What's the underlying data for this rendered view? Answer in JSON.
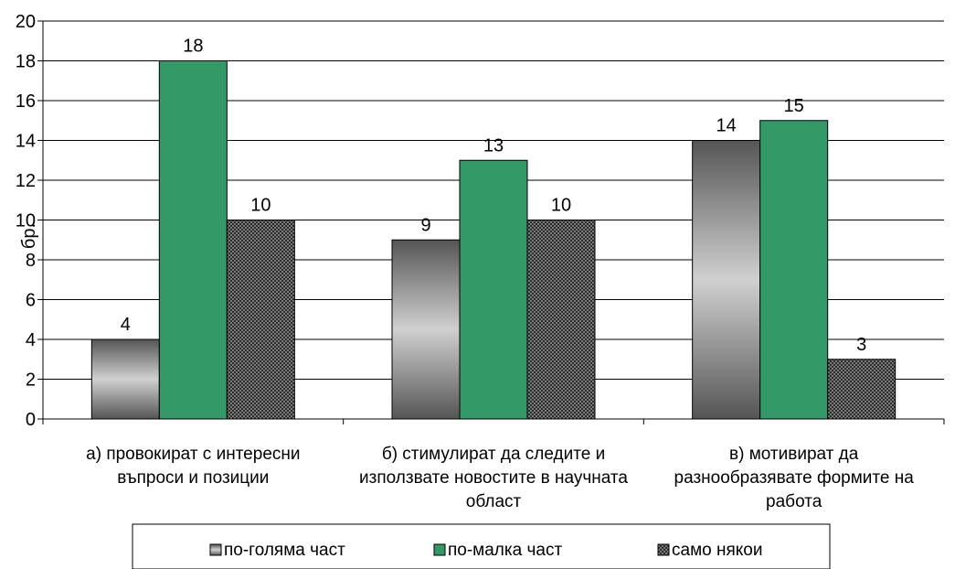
{
  "chart_data": {
    "type": "bar",
    "title": "",
    "xlabel": "",
    "ylabel": "бр.",
    "ylim": [
      0,
      20
    ],
    "ytick_step": 2,
    "grid": true,
    "legend_position": "bottom",
    "categories": [
      [
        "а) провокират с интересни",
        "въпроси и позиции"
      ],
      [
        "б) стимулират да следите и",
        "използвате новостите в научната",
        "област"
      ],
      [
        "в) мотивират да",
        "разнообразявате формите на",
        "работа"
      ]
    ],
    "series": [
      {
        "name": "по-голяма част",
        "values": [
          4,
          9,
          14
        ],
        "color": "#a0a0a0",
        "style": "gray-gradient"
      },
      {
        "name": "по-малка част",
        "values": [
          18,
          13,
          15
        ],
        "color": "#339966",
        "style": "solid"
      },
      {
        "name": "само някои",
        "values": [
          10,
          10,
          3
        ],
        "color": "#333333",
        "style": "checker"
      }
    ]
  }
}
